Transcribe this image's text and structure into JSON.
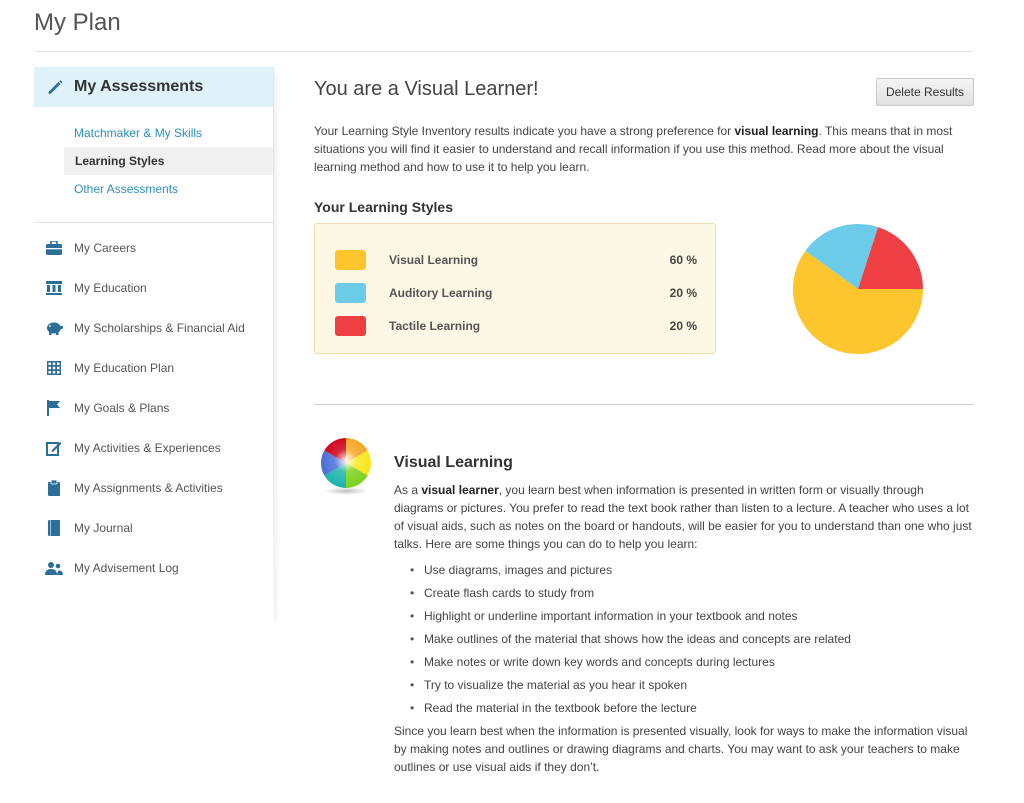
{
  "page": {
    "title": "My Plan"
  },
  "sidebar": {
    "header": {
      "label": "My Assessments",
      "icon": "pencil-icon"
    },
    "sub_items": [
      {
        "label": "Matchmaker & My Skills",
        "active": false
      },
      {
        "label": "Learning Styles",
        "active": true
      },
      {
        "label": "Other Assessments",
        "active": false
      }
    ],
    "items": [
      {
        "label": "My Careers",
        "icon": "briefcase-icon"
      },
      {
        "label": "My Education",
        "icon": "building-icon"
      },
      {
        "label": "My Scholarships & Financial Aid",
        "icon": "piggy-bank-icon"
      },
      {
        "label": "My Education Plan",
        "icon": "calendar-grid-icon"
      },
      {
        "label": "My Goals & Plans",
        "icon": "flag-icon"
      },
      {
        "label": "My Activities & Experiences",
        "icon": "edit-icon"
      },
      {
        "label": "My Assignments & Activities",
        "icon": "clipboard-icon"
      },
      {
        "label": "My Journal",
        "icon": "book-icon"
      },
      {
        "label": "My Advisement Log",
        "icon": "users-icon"
      }
    ],
    "accent_color": "#2b8fbf"
  },
  "main": {
    "title": "You are a Visual Learner!",
    "delete_button": "Delete Results",
    "intro": {
      "before": "Your Learning Style Inventory results indicate you have a strong preference for ",
      "bold": "visual learning",
      "after": ". This means that in most situations you will find it easier to understand and recall information if you use this method. Read more about the visual learning method and how to use it to help you learn."
    },
    "styles_heading": "Your Learning Styles",
    "detail": {
      "title": "Visual Learning",
      "icon": "color-wheel-icon",
      "body_before": "As a ",
      "body_bold": "visual learner",
      "body_after": ", you learn best when information is presented in written form or visually through diagrams or pictures. You prefer to read the text book rather than listen to a lecture. A teacher who uses a lot of visual aids, such as notes on the board or handouts, will be easier for you to understand than one who just talks. Here are some things you can do to help you learn:",
      "tips": [
        "Use diagrams, images and pictures",
        "Create flash cards to study from",
        "Highlight or underline important information in your textbook and notes",
        "Make outlines of the material that shows how the ideas and concepts are related",
        "Make notes or write down key words and concepts during lectures",
        "Try to visualize the material as you hear it spoken",
        "Read the material in the textbook before the lecture"
      ],
      "outro": "Since you learn best when the information is presented visually, look for ways to make the information visual by making notes and outlines or drawing diagrams and charts. You may want to ask your teachers to make outlines or use visual aids if they don’t."
    }
  },
  "chart_data": {
    "type": "pie",
    "categories": [
      "Visual Learning",
      "Auditory Learning",
      "Tactile Learning"
    ],
    "values": [
      60,
      20,
      20
    ],
    "value_labels": [
      "60 %",
      "20 %",
      "20 %"
    ],
    "colors": [
      "#fdc62e",
      "#6ccbe8",
      "#ee3f43"
    ],
    "legend": "left"
  }
}
